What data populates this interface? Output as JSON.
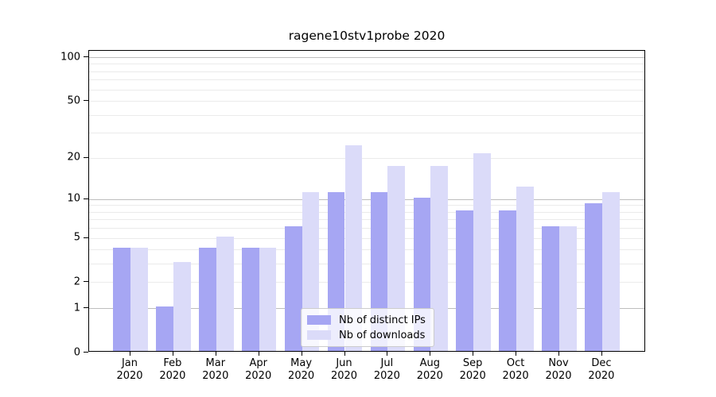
{
  "title": "ragene10stv1probe 2020",
  "colors": {
    "distinct_ips": "#a6a6f3",
    "downloads": "#dbdbf9",
    "grid_minor": "#ebebeb",
    "grid_major": "#bdbdbd",
    "axis": "#000000",
    "legend_border": "#cccccc"
  },
  "legend": {
    "items": [
      {
        "label": "Nb of distinct IPs",
        "color_key": "distinct_ips"
      },
      {
        "label": "Nb of downloads",
        "color_key": "downloads"
      }
    ]
  },
  "chart_data": {
    "type": "bar",
    "title": "ragene10stv1probe 2020",
    "categories": [
      "Jan 2020",
      "Feb 2020",
      "Mar 2020",
      "Apr 2020",
      "May 2020",
      "Jun 2020",
      "Jul 2020",
      "Aug 2020",
      "Sep 2020",
      "Oct 2020",
      "Nov 2020",
      "Dec 2020"
    ],
    "x_tick_line1": [
      "Jan",
      "Feb",
      "Mar",
      "Apr",
      "May",
      "Jun",
      "Jul",
      "Aug",
      "Sep",
      "Oct",
      "Nov",
      "Dec"
    ],
    "x_tick_line2": "2020",
    "series": [
      {
        "name": "Nb of distinct IPs",
        "color_key": "distinct_ips",
        "values": [
          4,
          1,
          4,
          4,
          6,
          11,
          11,
          10,
          8,
          8,
          6,
          9
        ]
      },
      {
        "name": "Nb of downloads",
        "color_key": "downloads",
        "values": [
          4,
          3,
          5,
          4,
          11,
          24,
          17,
          17,
          21,
          12,
          6,
          11
        ]
      }
    ],
    "xlabel": "",
    "ylabel": "",
    "yscale": "log1p",
    "ylim": [
      0,
      110.5
    ],
    "ytick_values": [
      0,
      1,
      2,
      5,
      10,
      20,
      50,
      100
    ],
    "grid_minor_values": [
      2,
      3,
      4,
      5,
      6,
      7,
      8,
      9,
      20,
      30,
      40,
      50,
      60,
      70,
      80,
      90
    ],
    "grid_major_values": [
      1,
      10,
      100
    ],
    "grid": true,
    "legend_position": "lower center"
  }
}
